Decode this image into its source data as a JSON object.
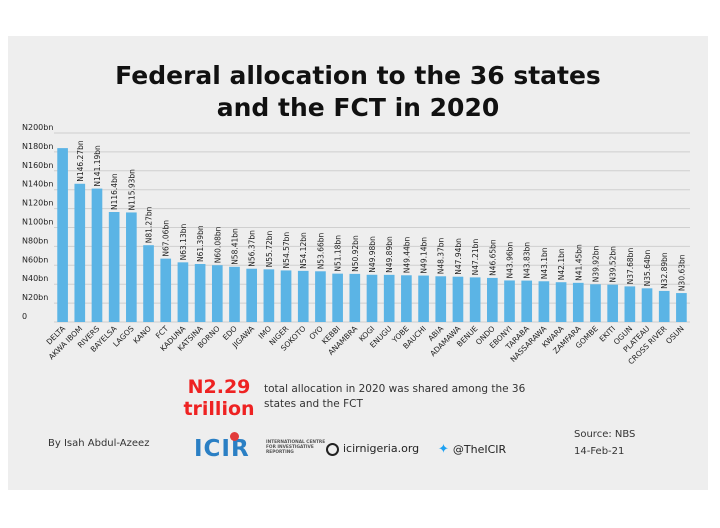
{
  "chart_data": {
    "type": "bar",
    "title": "Federal allocation to the 36 states and the FCT in 2020",
    "categories": [
      "DELTA",
      "AKWA IBOM",
      "RIVERS",
      "BAYELSA",
      "LAGOS",
      "KANO",
      "FCT",
      "KADUNA",
      "KATSINA",
      "BORNO",
      "EDO",
      "JIGAWA",
      "IMO",
      "NIGER",
      "SOKOTO",
      "OYO",
      "KEBBI",
      "ANAMBRA",
      "KOGI",
      "ENUGU",
      "YOBE",
      "BAUCHI",
      "ABIA",
      "ADAMAWA",
      "BENUE",
      "ONDO",
      "EBONYI",
      "TARABA",
      "NASSARAWA",
      "KWARA",
      "ZAMFARA",
      "GOMBE",
      "EKITI",
      "OGUN",
      "PLATEAU",
      "CROSS RIVER",
      "OSUN"
    ],
    "values": [
      184,
      146.27,
      141.19,
      116.4,
      115.93,
      81.27,
      67.06,
      63.13,
      61.39,
      60.08,
      58.41,
      56.37,
      55.72,
      54.57,
      54.12,
      53.66,
      51.18,
      50.92,
      49.98,
      49.89,
      49.44,
      49.14,
      48.37,
      47.94,
      47.21,
      46.65,
      43.96,
      43.83,
      43.1,
      42.1,
      41.45,
      39.92,
      39.52,
      37.68,
      35.64,
      32.89,
      30.63
    ],
    "value_labels": [
      "",
      "N146.27bn",
      "N141.19bn",
      "N116.4bn",
      "N115.93bn",
      "N81.27bn",
      "N67.06bn",
      "N63.13bn",
      "N61.39bn",
      "N60.08bn",
      "N58.41bn",
      "N56.37bn",
      "N55.72bn",
      "N54.57bn",
      "N54.12bn",
      "N53.66bn",
      "N51.18bn",
      "N50.92bn",
      "N49.98bn",
      "N49.89bn",
      "N49.44bn",
      "N49.14bn",
      "N48.37bn",
      "N47.94bn",
      "N47.21bn",
      "N46.65bn",
      "N43.96bn",
      "N43.83bn",
      "N43.1bn",
      "N42.1bn",
      "N41.45bn",
      "N39.92bn",
      "N39.52bn",
      "N37.68bn",
      "N35.64bn",
      "N32.89bn",
      "N30.63bn"
    ],
    "ylim": [
      0,
      200
    ],
    "yticks": [
      0,
      20,
      40,
      60,
      80,
      100,
      120,
      140,
      160,
      180,
      200
    ],
    "ytick_labels": [
      "0",
      "N20bn",
      "N40bn",
      "N60bn",
      "N80bn",
      "N100bn",
      "N120bn",
      "N140bn",
      "N160bn",
      "N180bn",
      "N200bn"
    ],
    "grid": true,
    "bar_color": "#5bb4e5",
    "grid_color": "#cfcfcf"
  },
  "title_line1": "Federal allocation to the 36 states",
  "title_line2": "and the FCT in 2020",
  "total": {
    "amount_line1": "N2.29",
    "amount_line2": "trillion",
    "text": "total allocation in 2020 was shared among the 36 states and the FCT",
    "color": "#ee2222"
  },
  "author": "By Isah Abdul-Azeez",
  "logo": {
    "word": "ICIR",
    "subtitle": "INTERNATIONAL CENTRE FOR INVESTIGATIVE REPORTING"
  },
  "website": "icirnigeria.org",
  "twitter": "@TheICIR",
  "source": "Source: NBS",
  "date": "14-Feb-21",
  "icons": {
    "website": "globe-icon",
    "twitter": "twitter-bird-icon"
  }
}
